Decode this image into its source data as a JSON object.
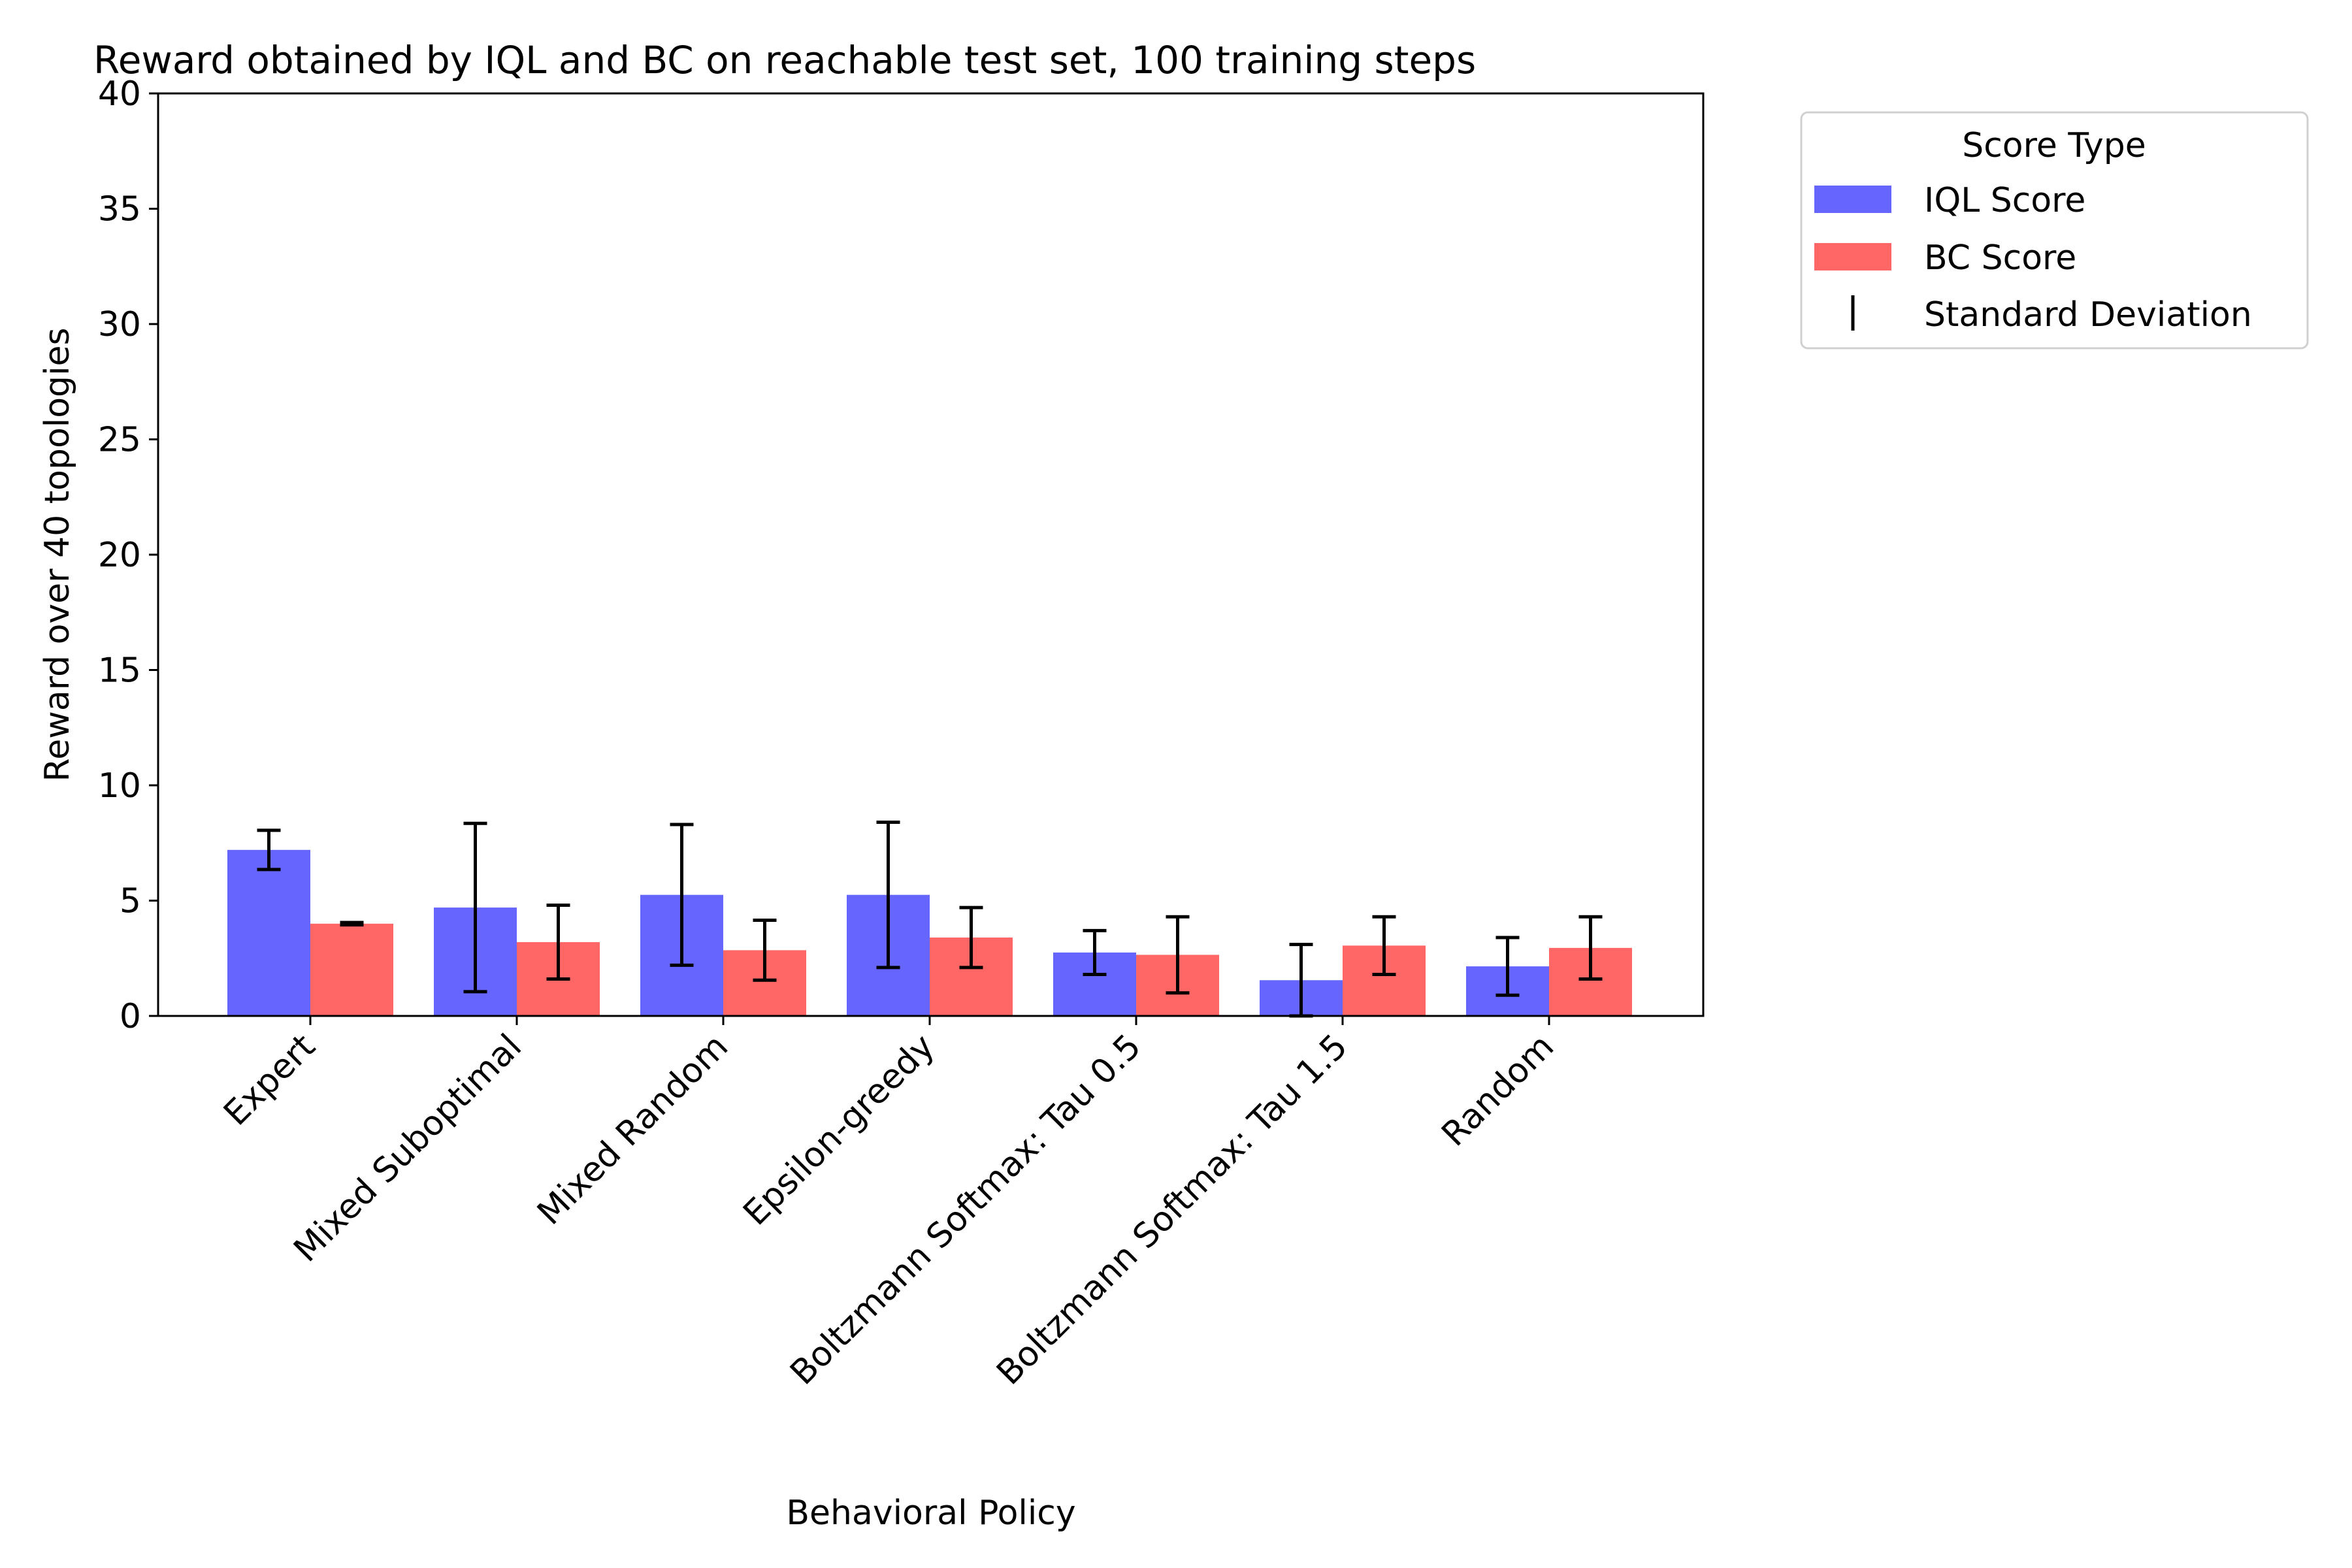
{
  "chart_data": {
    "type": "bar",
    "title": "Reward obtained by IQL and BC on reachable test set, 100 training steps",
    "xlabel": "Behavioral Policy",
    "ylabel": "Reward over 40 topologies",
    "ylim": [
      0,
      40
    ],
    "yticks": [
      "0",
      "5",
      "10",
      "15",
      "20",
      "25",
      "30",
      "35",
      "40"
    ],
    "grid": false,
    "legend_position": "outside-top-right",
    "categories": [
      "Expert",
      "Mixed Suboptimal",
      "Mixed Random",
      "Epsilon-greedy",
      "Boltzmann Softmax: Tau 0.5",
      "Boltzmann Softmax: Tau 1.5",
      "Random"
    ],
    "series": [
      {
        "name": "IQL Score",
        "color": "#6666ff",
        "values": [
          7.2,
          4.7,
          5.25,
          5.25,
          2.75,
          1.55,
          2.15
        ],
        "std": [
          0.85,
          3.65,
          3.05,
          3.15,
          0.95,
          1.55,
          1.25
        ]
      },
      {
        "name": "BC Score",
        "color": "#ff6666",
        "values": [
          4.0,
          3.2,
          2.85,
          3.4,
          2.65,
          3.05,
          2.95
        ],
        "std": [
          0.05,
          1.6,
          1.3,
          1.3,
          1.65,
          1.25,
          1.35
        ]
      }
    ],
    "errorbar_label": "Standard Deviation",
    "legend_title": "Score Type"
  }
}
